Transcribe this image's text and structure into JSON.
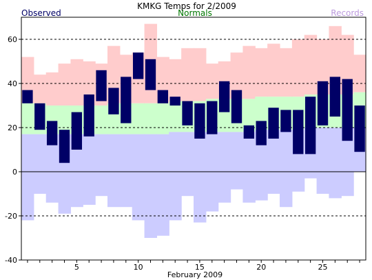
{
  "chart_data": {
    "type": "bar",
    "title": "KMKG Temps for 2/2009",
    "xlabel": "February 2009",
    "ylabel": "",
    "legend": [
      {
        "name": "Observed",
        "color": "#000066",
        "placement": "top-left"
      },
      {
        "name": "Normals",
        "color": "#007700",
        "placement": "top-center"
      },
      {
        "name": "Records",
        "color": "#bb99dd",
        "placement": "top-right"
      }
    ],
    "colors": {
      "observed": "#000066",
      "record_high_band": "#ffcccc",
      "normal_band": "#ccffcc",
      "record_low_band": "#ccccff",
      "grid": "#000000"
    },
    "xlim": [
      0.5,
      28.5
    ],
    "ylim": [
      -40,
      70
    ],
    "x_ticks": [
      5,
      10,
      15,
      20,
      25
    ],
    "y_ticks": [
      -40,
      -20,
      0,
      20,
      40,
      60
    ],
    "x_tick_labels": [
      "5",
      "10",
      "15",
      "20",
      "25"
    ],
    "y_tick_labels": [
      "-40",
      "-20",
      "0",
      "20",
      "40",
      "60"
    ],
    "gridlines": [
      -20,
      20,
      40,
      60
    ],
    "days": [
      1,
      2,
      3,
      4,
      5,
      6,
      7,
      8,
      9,
      10,
      11,
      12,
      13,
      14,
      15,
      16,
      17,
      18,
      19,
      20,
      21,
      22,
      23,
      24,
      25,
      26,
      27,
      28
    ],
    "observed_high": [
      37,
      31,
      23,
      19,
      27,
      35,
      46,
      38,
      43,
      54,
      51,
      37,
      34,
      32,
      31,
      32,
      41,
      37,
      21,
      23,
      29,
      28,
      28,
      34,
      41,
      43,
      42,
      30
    ],
    "observed_low": [
      31,
      19,
      12,
      4,
      10,
      16,
      32,
      26,
      22,
      42,
      37,
      31,
      30,
      21,
      15,
      17,
      27,
      22,
      15,
      12,
      15,
      18,
      8,
      8,
      21,
      25,
      14,
      9
    ],
    "record_high": [
      52,
      44,
      45,
      49,
      51,
      50,
      49,
      57,
      53,
      54,
      67,
      52,
      51,
      56,
      56,
      49,
      50,
      54,
      57,
      56,
      58,
      56,
      60,
      62,
      60,
      66,
      62,
      53
    ],
    "record_low": [
      -22,
      -10,
      -14,
      -19,
      -16,
      -15,
      -11,
      -16,
      -16,
      -22,
      -30,
      -29,
      -22,
      -11,
      -23,
      -18,
      -14,
      -8,
      -14,
      -13,
      -10,
      -16,
      -9,
      -3,
      -10,
      -12,
      -11,
      0
    ],
    "normal_high": [
      31,
      31,
      30,
      30,
      30,
      30,
      30,
      31,
      31,
      31,
      31,
      31,
      32,
      32,
      32,
      33,
      33,
      33,
      33,
      34,
      34,
      34,
      34,
      35,
      35,
      35,
      35,
      36
    ],
    "normal_low": [
      17,
      17,
      17,
      17,
      17,
      17,
      17,
      17,
      17,
      17,
      17,
      17,
      18,
      18,
      18,
      18,
      18,
      18,
      18,
      19,
      19,
      19,
      19,
      20,
      20,
      20,
      20,
      20
    ]
  }
}
